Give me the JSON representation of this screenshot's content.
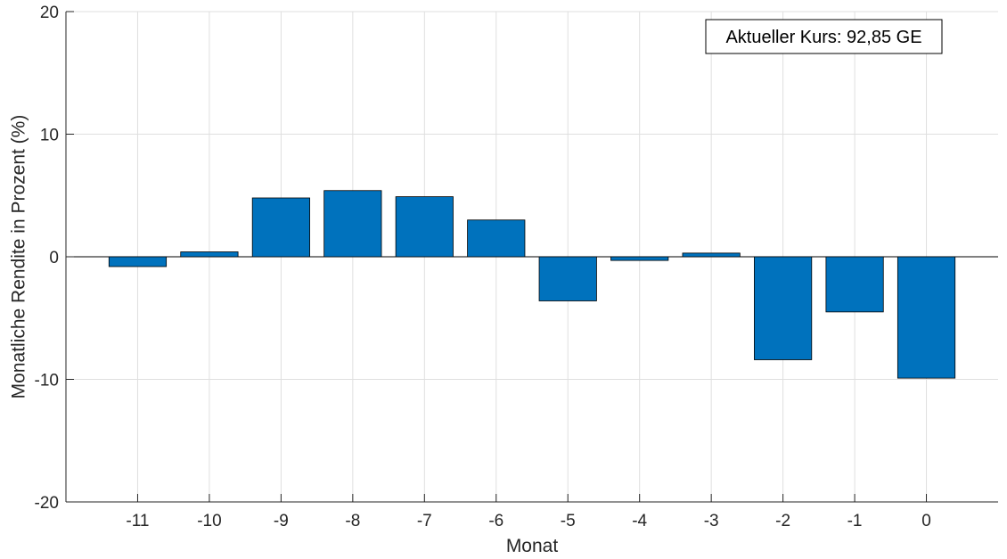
{
  "chart_data": {
    "type": "bar",
    "xlabel": "Monat",
    "ylabel": "Monatliche Rendite in Prozent (%)",
    "categories": [
      "-11",
      "-10",
      "-9",
      "-8",
      "-7",
      "-6",
      "-5",
      "-4",
      "-3",
      "-2",
      "-1",
      "0"
    ],
    "x": [
      -11,
      -10,
      -9,
      -8,
      -7,
      -6,
      -5,
      -4,
      -3,
      -2,
      -1,
      0
    ],
    "values": [
      -0.8,
      0.4,
      4.8,
      5.4,
      4.9,
      3.0,
      -3.6,
      -0.3,
      0.3,
      -8.4,
      -4.5,
      -9.9
    ],
    "xlim": [
      -12,
      1
    ],
    "ylim": [
      -20,
      20
    ],
    "yticks": [
      -20,
      -10,
      0,
      10,
      20
    ],
    "ytick_labels": [
      "-20",
      "-10",
      "0",
      "10",
      "20"
    ],
    "grid": true,
    "bar_color": "#0072BD",
    "annotation": "Aktueller Kurs: 92,85 GE"
  }
}
